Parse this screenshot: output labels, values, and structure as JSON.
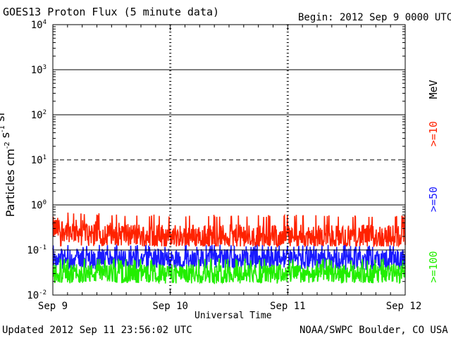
{
  "header": {
    "title": "GOES13 Proton Flux (5 minute data)",
    "begin": "Begin: 2012 Sep 9 0000 UTC"
  },
  "footer": {
    "updated": "Updated 2012 Sep 11 23:56:02 UTC",
    "credit": "NOAA/SWPC Boulder, CO USA"
  },
  "chart_data": {
    "type": "line",
    "title": "GOES13 Proton Flux (5 minute data)",
    "xlabel": "Universal Time",
    "ylabel": "Particles cm^-2 s^-1 sr^-1",
    "yscale": "log",
    "ylim": [
      0.01,
      10000
    ],
    "xlim_days": [
      0,
      3
    ],
    "x_tick_labels": [
      "Sep 9",
      "Sep 10",
      "Sep 11",
      "Sep 12"
    ],
    "y_tick_labels": [
      {
        "base": "10",
        "exp": "-2"
      },
      {
        "base": "10",
        "exp": "-1"
      },
      {
        "base": "10",
        "exp": "0"
      },
      {
        "base": "10",
        "exp": "1"
      },
      {
        "base": "10",
        "exp": "2"
      },
      {
        "base": "10",
        "exp": "3"
      },
      {
        "base": "10",
        "exp": "4"
      }
    ],
    "unit_label": "MeV",
    "grid": "horizontal lines at each decade; dashed at 10^1",
    "series": [
      {
        "name": ">=10",
        "color": "#ff2200",
        "baseline": 0.2,
        "noise_range": [
          0.12,
          0.6
        ]
      },
      {
        "name": ">=50",
        "color": "#1a1aff",
        "baseline": 0.065,
        "noise_range": [
          0.035,
          0.13
        ]
      },
      {
        "name": ">=100",
        "color": "#22ee00",
        "baseline": 0.03,
        "noise_range": [
          0.018,
          0.065
        ]
      }
    ]
  }
}
